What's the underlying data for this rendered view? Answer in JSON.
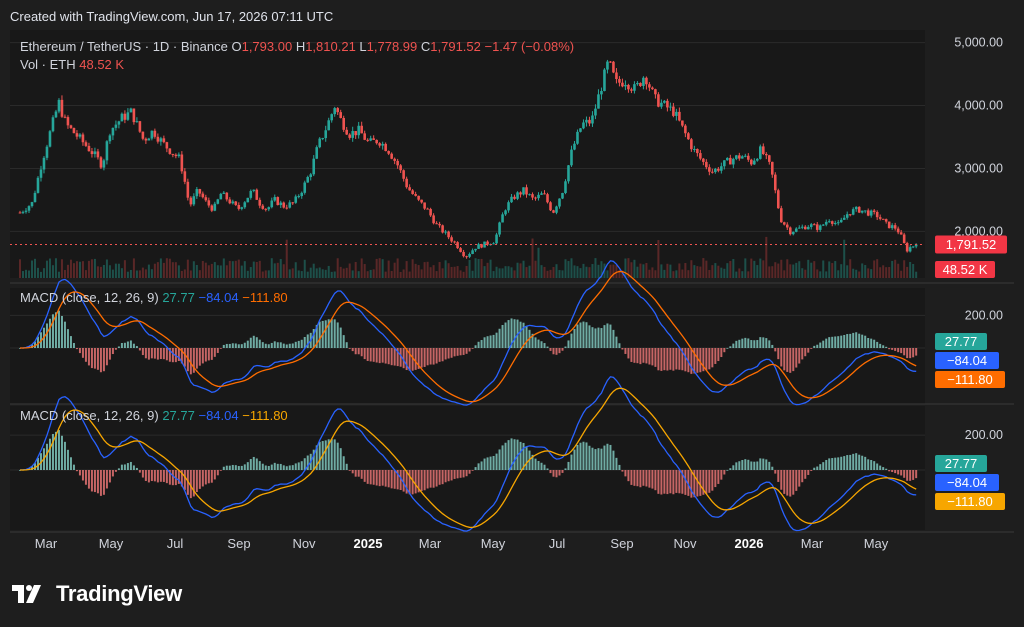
{
  "header": {
    "created_with": "Created with TradingView.com, Jun 17, 2026 07:11 UTC"
  },
  "brand": {
    "name": "TradingView"
  },
  "chart_data": {
    "type": "candlestick",
    "symbol": "Ethereum / TetherUS · 1D · Binance",
    "ohlc": {
      "open_label": "O",
      "open": "1,793.00",
      "high_label": "H",
      "high": "1,810.21",
      "low_label": "L",
      "low": "1,778.99",
      "close_label": "C",
      "close": "1,791.52",
      "change": "−1.47 (−0.08%)"
    },
    "volume": {
      "label": "Vol · ETH",
      "value": "48.52 K"
    },
    "price_axis": {
      "ticks": [
        5000,
        4000,
        3000,
        2000
      ],
      "tick_labels": [
        "5,000.00",
        "4,000.00",
        "3,000.00",
        "2,000.00"
      ],
      "range": [
        1450,
        5200
      ]
    },
    "last_price_label": "1,791.52",
    "last_volume_label": "48.52 K",
    "time_axis": {
      "labels": [
        "Mar",
        "May",
        "Jul",
        "Sep",
        "Nov",
        "2025",
        "Mar",
        "May",
        "Jul",
        "Sep",
        "Nov",
        "2026",
        "Mar",
        "May"
      ],
      "bold": [
        "2025",
        "2026"
      ]
    },
    "price_path": [
      {
        "t": 0,
        "p": 2300
      },
      {
        "t": 0.05,
        "p": 2450
      },
      {
        "t": 0.09,
        "p": 3100
      },
      {
        "t": 0.13,
        "p": 3650
      },
      {
        "t": 0.16,
        "p": 4050
      },
      {
        "t": 0.19,
        "p": 3700
      },
      {
        "t": 0.24,
        "p": 3500
      },
      {
        "t": 0.3,
        "p": 3250
      },
      {
        "t": 0.34,
        "p": 3050
      },
      {
        "t": 0.37,
        "p": 3600
      },
      {
        "t": 0.42,
        "p": 3800
      },
      {
        "t": 0.46,
        "p": 3900
      },
      {
        "t": 0.51,
        "p": 3450
      },
      {
        "t": 0.55,
        "p": 3600
      },
      {
        "t": 0.59,
        "p": 3400
      },
      {
        "t": 0.63,
        "p": 3250
      },
      {
        "t": 0.66,
        "p": 3150
      },
      {
        "t": 0.68,
        "p": 2800
      },
      {
        "t": 0.7,
        "p": 2400
      },
      {
        "t": 0.735,
        "p": 2650
      },
      {
        "t": 0.77,
        "p": 2450
      },
      {
        "t": 0.8,
        "p": 2350
      },
      {
        "t": 0.83,
        "p": 2600
      },
      {
        "t": 0.86,
        "p": 2500
      },
      {
        "t": 0.9,
        "p": 2350
      },
      {
        "t": 0.93,
        "p": 2500
      },
      {
        "t": 0.96,
        "p": 2650
      },
      {
        "t": 0.99,
        "p": 2450
      },
      {
        "t": 1.02,
        "p": 2350
      },
      {
        "t": 1.05,
        "p": 2500
      },
      {
        "t": 1.09,
        "p": 2400
      },
      {
        "t": 1.13,
        "p": 2450
      },
      {
        "t": 1.17,
        "p": 2700
      },
      {
        "t": 1.2,
        "p": 2950
      },
      {
        "t": 1.23,
        "p": 3350
      },
      {
        "t": 1.27,
        "p": 3700
      },
      {
        "t": 1.3,
        "p": 4000
      },
      {
        "t": 1.32,
        "p": 3800
      },
      {
        "t": 1.36,
        "p": 3550
      },
      {
        "t": 1.4,
        "p": 3600
      },
      {
        "t": 1.44,
        "p": 3400
      },
      {
        "t": 1.48,
        "p": 3450
      },
      {
        "t": 1.52,
        "p": 3300
      },
      {
        "t": 1.56,
        "p": 3050
      },
      {
        "t": 1.6,
        "p": 2700
      },
      {
        "t": 1.64,
        "p": 2500
      },
      {
        "t": 1.68,
        "p": 2350
      },
      {
        "t": 1.72,
        "p": 2100
      },
      {
        "t": 1.76,
        "p": 1950
      },
      {
        "t": 1.8,
        "p": 1800
      },
      {
        "t": 1.84,
        "p": 1600
      },
      {
        "t": 1.88,
        "p": 1750
      },
      {
        "t": 1.92,
        "p": 1800
      },
      {
        "t": 1.96,
        "p": 1850
      },
      {
        "t": 2.0,
        "p": 2350
      },
      {
        "t": 2.04,
        "p": 2550
      },
      {
        "t": 2.08,
        "p": 2650
      },
      {
        "t": 2.12,
        "p": 2500
      },
      {
        "t": 2.16,
        "p": 2600
      },
      {
        "t": 2.2,
        "p": 2300
      },
      {
        "t": 2.24,
        "p": 2650
      },
      {
        "t": 2.28,
        "p": 3300
      },
      {
        "t": 2.32,
        "p": 3700
      },
      {
        "t": 2.36,
        "p": 3750
      },
      {
        "t": 2.4,
        "p": 4300
      },
      {
        "t": 2.43,
        "p": 4700
      },
      {
        "t": 2.46,
        "p": 4350
      },
      {
        "t": 2.5,
        "p": 4400
      },
      {
        "t": 2.54,
        "p": 4250
      },
      {
        "t": 2.58,
        "p": 4500
      },
      {
        "t": 2.62,
        "p": 4100
      },
      {
        "t": 2.66,
        "p": 4000
      },
      {
        "t": 2.7,
        "p": 3900
      },
      {
        "t": 2.74,
        "p": 3600
      },
      {
        "t": 2.78,
        "p": 3300
      },
      {
        "t": 2.82,
        "p": 3100
      },
      {
        "t": 2.86,
        "p": 2950
      },
      {
        "t": 2.9,
        "p": 3050
      },
      {
        "t": 2.94,
        "p": 3150
      },
      {
        "t": 2.98,
        "p": 3200
      },
      {
        "t": 3.02,
        "p": 3100
      },
      {
        "t": 3.06,
        "p": 3300
      },
      {
        "t": 3.1,
        "p": 3000
      },
      {
        "t": 3.14,
        "p": 2200
      },
      {
        "t": 3.18,
        "p": 2000
      },
      {
        "t": 3.22,
        "p": 2050
      },
      {
        "t": 3.26,
        "p": 2100
      },
      {
        "t": 3.3,
        "p": 2050
      },
      {
        "t": 3.34,
        "p": 2200
      },
      {
        "t": 3.38,
        "p": 2100
      },
      {
        "t": 3.42,
        "p": 2300
      },
      {
        "t": 3.46,
        "p": 2350
      },
      {
        "t": 3.5,
        "p": 2300
      },
      {
        "t": 3.54,
        "p": 2250
      },
      {
        "t": 3.58,
        "p": 2100
      },
      {
        "t": 3.62,
        "p": 2050
      },
      {
        "t": 3.64,
        "p": 1900
      },
      {
        "t": 3.66,
        "p": 1700
      },
      {
        "t": 3.68,
        "p": 1760
      },
      {
        "t": 3.7,
        "p": 1791.52
      }
    ],
    "macd": {
      "label": "MACD (close, 12, 26, 9)",
      "histogram_value": "27.77",
      "macd_value": "−84.04",
      "signal_value": "−111.80",
      "axis_tick": "200.00",
      "colors": {
        "histogram": "#26a69a",
        "macd": "#2962ff",
        "signal": "#ff6d00",
        "signal_alt": "#f7a600"
      }
    },
    "colors": {
      "up": "#26a69a",
      "down": "#ef5350",
      "background": "#1e1e1e",
      "grid": "#2a2a2a",
      "panel_border": "#3a3a3a"
    }
  }
}
